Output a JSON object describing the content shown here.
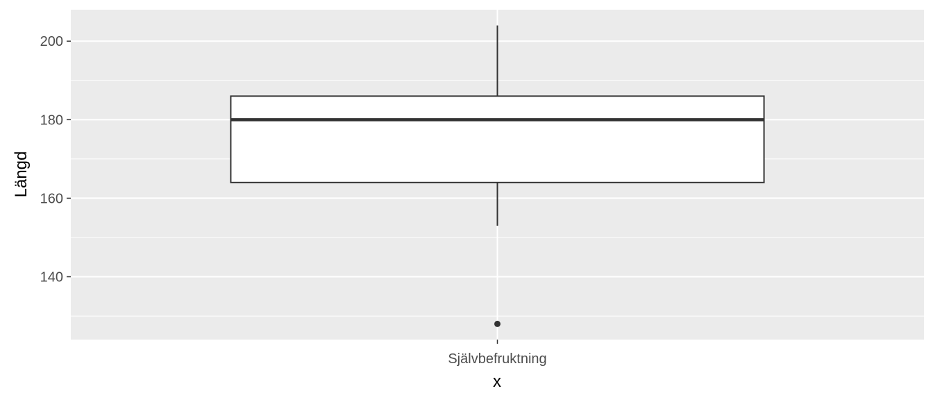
{
  "chart_data": {
    "type": "boxplot",
    "title": "",
    "xlabel": "x",
    "ylabel": "Längd",
    "categories": [
      "Självbefruktning"
    ],
    "boxes": [
      {
        "category": "Självbefruktning",
        "whisker_low": 153,
        "q1": 164,
        "median": 180,
        "q3": 186,
        "whisker_high": 204,
        "outliers": [
          128
        ]
      }
    ],
    "y_ticks": [
      140,
      160,
      180,
      200
    ],
    "ylim": [
      124,
      208
    ],
    "grid": true,
    "legend": "none",
    "colors": {
      "panel_background": "#ebebeb",
      "grid_line": "#ffffff",
      "box_fill": "#ffffff",
      "box_stroke": "#333333",
      "tick_text": "#4d4d4d",
      "axis_title": "#000000"
    }
  }
}
